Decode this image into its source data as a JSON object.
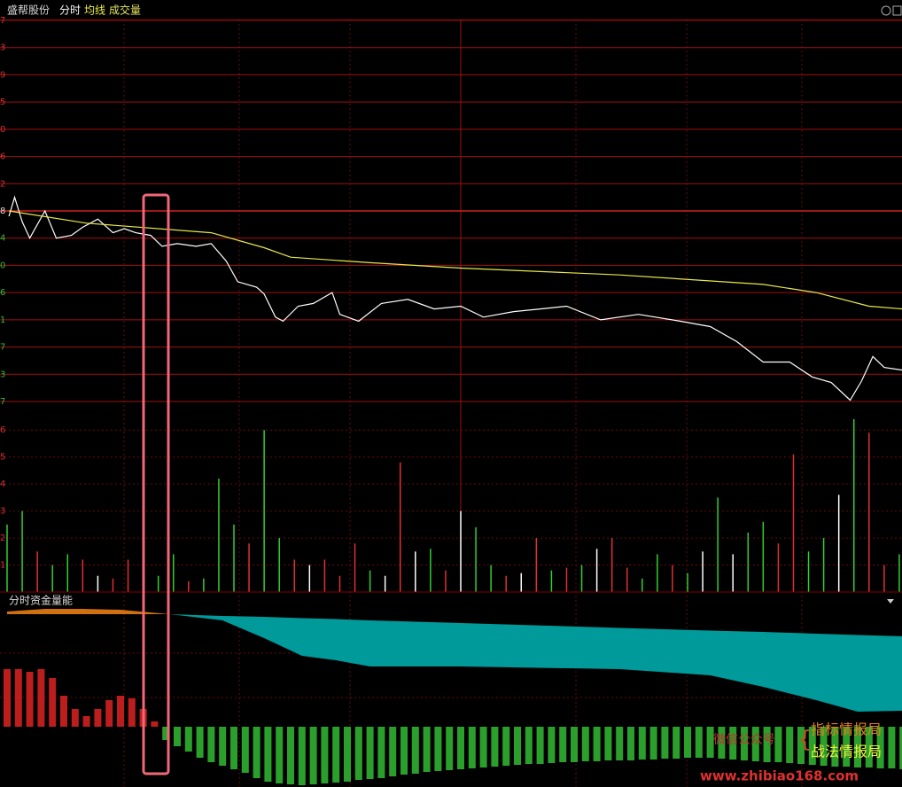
{
  "header": {
    "stock": "盛帮股份",
    "mode": "分时",
    "avg_label": "均线",
    "vol_label": "成交量"
  },
  "chart_data": [
    {
      "type": "line",
      "baseline": 7,
      "ylim": [
        0,
        14
      ],
      "yticks": [
        {
          "value": 0,
          "label": "7"
        },
        {
          "value": 1,
          "label": "3"
        },
        {
          "value": 2,
          "label": "7"
        },
        {
          "value": 3,
          "label": "1"
        },
        {
          "value": 4,
          "label": "6"
        },
        {
          "value": 5,
          "label": "0"
        },
        {
          "value": 6,
          "label": "4"
        },
        {
          "value": 7,
          "label": "8"
        },
        {
          "value": 8,
          "label": "2"
        },
        {
          "value": 9,
          "label": "6"
        },
        {
          "value": 10,
          "label": "0"
        },
        {
          "value": 11,
          "label": "5"
        },
        {
          "value": 12,
          "label": "9"
        },
        {
          "value": 13,
          "label": "3"
        },
        {
          "value": 14,
          "label": "7"
        }
      ],
      "xlim": [
        0,
        240
      ],
      "series": [
        {
          "color": "#ffffff",
          "x": [
            0.5,
            2,
            4,
            6,
            10,
            13,
            17,
            20,
            24,
            28,
            31,
            34,
            38,
            41,
            45,
            50,
            54,
            58,
            61,
            66,
            68,
            71,
            73,
            77,
            81,
            86,
            88,
            93,
            99,
            106,
            113,
            120,
            126,
            134,
            141,
            148,
            157,
            167,
            178,
            186,
            193,
            200,
            207,
            213,
            218,
            223,
            226,
            229,
            232,
            237
          ],
          "values": [
            6.8,
            7.5,
            6.6,
            6.0,
            7.0,
            6.0,
            6.1,
            6.4,
            6.7,
            6.2,
            6.35,
            6.2,
            6.1,
            5.7,
            5.8,
            5.7,
            5.8,
            5.15,
            4.4,
            4.2,
            3.95,
            3.1,
            2.95,
            3.5,
            3.6,
            4.0,
            3.2,
            2.95,
            3.6,
            3.75,
            3.4,
            3.5,
            3.1,
            3.3,
            3.4,
            3.5,
            3.0,
            3.2,
            2.95,
            2.75,
            2.2,
            1.45,
            1.45,
            0.9,
            0.7,
            0.05,
            0.75,
            1.65,
            1.25,
            1.15
          ]
        },
        {
          "color": "#e8e84a",
          "x": [
            0.5,
            21,
            54,
            68,
            75,
            96,
            120,
            162,
            200,
            214,
            228,
            237
          ],
          "values": [
            7.0,
            6.55,
            6.2,
            5.65,
            5.3,
            5.1,
            4.9,
            4.65,
            4.3,
            4.0,
            3.5,
            3.4
          ]
        }
      ]
    },
    {
      "type": "bar",
      "ylim": [
        0,
        6.5
      ],
      "yticks": [
        1,
        2,
        3,
        4,
        5,
        6
      ],
      "xlim": [
        0,
        240
      ],
      "x": [
        0,
        4,
        8,
        12,
        16,
        20,
        24,
        28,
        32,
        36,
        40,
        44,
        48,
        52,
        56,
        60,
        64,
        68,
        72,
        76,
        80,
        84,
        88,
        92,
        96,
        100,
        104,
        108,
        112,
        116,
        120,
        124,
        128,
        132,
        136,
        140,
        144,
        148,
        152,
        156,
        160,
        164,
        168,
        172,
        176,
        180,
        184,
        188,
        192,
        196,
        200,
        204,
        208,
        212,
        216,
        220,
        224,
        228,
        232,
        236
      ],
      "values": [
        2.5,
        3.0,
        1.5,
        1.0,
        1.4,
        1.2,
        0.6,
        0.5,
        1.2,
        0.3,
        0.6,
        1.4,
        0.4,
        0.5,
        4.2,
        2.5,
        1.8,
        6.0,
        2.0,
        1.2,
        1.0,
        1.2,
        0.6,
        1.8,
        0.8,
        0.6,
        4.8,
        1.5,
        1.6,
        0.8,
        3.0,
        2.4,
        1.0,
        0.6,
        0.7,
        2.0,
        0.8,
        0.9,
        1.0,
        1.6,
        2.0,
        0.9,
        0.5,
        1.4,
        1.0,
        0.7,
        1.5,
        3.5,
        1.4,
        2.2,
        2.6,
        1.8,
        5.1,
        1.5,
        2.0,
        3.6,
        6.4,
        5.9,
        1.0,
        1.4
      ],
      "colors": [
        "#30d030",
        "#30d030",
        "#e03030",
        "#30d030",
        "#30d030",
        "#e03030",
        "#ffffff",
        "#e03030",
        "#e03030",
        "#e03030",
        "#30d030",
        "#30d030",
        "#e03030",
        "#30d030",
        "#30d030",
        "#30d030",
        "#e03030",
        "#30d030",
        "#30d030",
        "#e03030",
        "#ffffff",
        "#e03030",
        "#e03030",
        "#e03030",
        "#30d030",
        "#ffffff",
        "#e03030",
        "#ffffff",
        "#30d030",
        "#e03030",
        "#ffffff",
        "#30d030",
        "#30d030",
        "#e03030",
        "#ffffff",
        "#e03030",
        "#30d030",
        "#e03030",
        "#30d030",
        "#ffffff",
        "#e03030",
        "#e03030",
        "#30d030",
        "#30d030",
        "#e03030",
        "#30d030",
        "#ffffff",
        "#30d030",
        "#ffffff",
        "#30d030",
        "#30d030",
        "#e03030",
        "#e03030",
        "#30d030",
        "#30d030",
        "#ffffff",
        "#30d030",
        "#e03030",
        "#e03030",
        "#30d030"
      ]
    },
    {
      "type": "area",
      "title": "分时资金量能",
      "ylim": [
        -6.8,
        15
      ],
      "xlim": [
        0,
        240
      ],
      "areas": [
        {
          "color": "#d07010",
          "x": [
            0,
            10,
            20,
            30,
            43
          ],
          "upper": [
            13.0,
            13.3,
            13.3,
            13.2,
            12.7
          ],
          "lower": [
            12.7,
            12.7,
            12.7,
            12.7,
            12.7
          ]
        },
        {
          "color": "#009a9a",
          "x": [
            43,
            57,
            68,
            78,
            87,
            96,
            120,
            162,
            186,
            200,
            214,
            225,
            237
          ],
          "upper": [
            12.7,
            12.5,
            12.4,
            12.25,
            12.15,
            12.0,
            11.7,
            11.15,
            10.85,
            10.7,
            10.5,
            10.35,
            10.2
          ],
          "lower": [
            12.7,
            12.0,
            10.0,
            8.0,
            7.5,
            6.8,
            6.8,
            6.5,
            5.8,
            4.5,
            3.0,
            1.7,
            1.8
          ]
        }
      ],
      "bars": {
        "up_color": "#d02020",
        "down_color": "#30b030",
        "x": [
          0,
          3,
          6,
          9,
          12,
          15,
          18,
          21,
          24,
          27,
          30,
          33,
          36,
          39,
          42,
          45,
          48,
          51,
          54,
          57,
          60,
          63,
          66,
          69,
          72,
          75,
          78,
          81,
          84,
          87,
          90,
          93,
          96,
          99,
          102,
          105,
          108,
          111,
          114,
          117,
          120,
          123,
          126,
          129,
          132,
          135,
          138,
          141,
          144,
          147,
          150,
          153,
          156,
          159,
          162,
          165,
          168,
          171,
          174,
          177,
          180,
          183,
          186,
          189,
          192,
          195,
          198,
          201,
          204,
          207,
          210,
          213,
          216,
          219,
          222,
          225,
          228,
          231,
          234,
          237
        ],
        "values": [
          6.5,
          6.5,
          6.2,
          6.5,
          5.5,
          3.5,
          2.0,
          1.2,
          2.0,
          3.0,
          3.5,
          3.2,
          2.0,
          0.6,
          -1.5,
          -2.2,
          -2.8,
          -3.5,
          -4.0,
          -4.4,
          -4.8,
          -5.2,
          -5.8,
          -6.2,
          -6.4,
          -6.5,
          -6.6,
          -6.5,
          -6.4,
          -6.3,
          -6.2,
          -6.0,
          -5.9,
          -5.8,
          -5.6,
          -5.4,
          -5.3,
          -5.1,
          -5.0,
          -4.9,
          -4.8,
          -4.7,
          -4.6,
          -4.5,
          -4.4,
          -4.3,
          -4.2,
          -4.2,
          -4.1,
          -4.0,
          -4.0,
          -3.9,
          -3.9,
          -3.8,
          -3.8,
          -3.8,
          -3.7,
          -3.7,
          -3.6,
          -3.6,
          -3.5,
          -3.5,
          -3.5,
          -3.6,
          -3.7,
          -3.8,
          -3.9,
          -4.0,
          -4.0,
          -4.1,
          -4.2,
          -4.3,
          -4.4,
          -4.5,
          -4.5,
          -4.6,
          -4.6,
          -4.7,
          -4.7,
          -4.8
        ]
      }
    }
  ],
  "watermark": {
    "wechat": "微信公众号",
    "brace": "{",
    "name1": "指标情报局",
    "name2": "战法情报局",
    "url": "www.zhibiao168.com"
  }
}
